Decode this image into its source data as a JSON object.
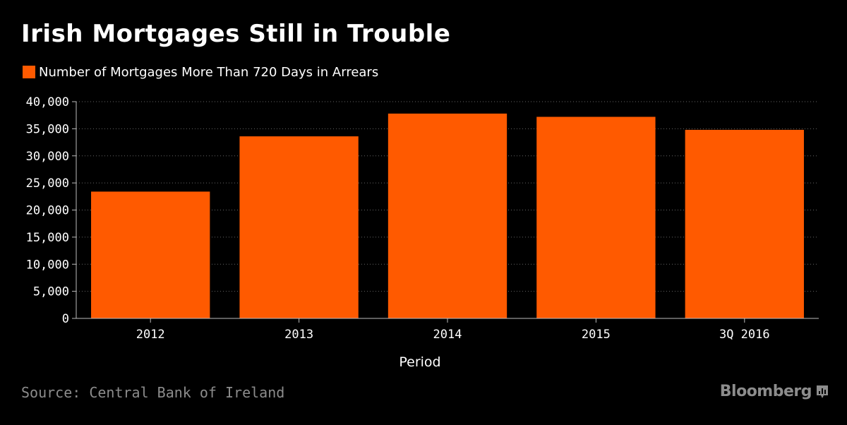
{
  "colors": {
    "background": "#000000",
    "bar": "#ff5a00",
    "text": "#ffffff",
    "grid": "#666666",
    "muted": "#8c8c8c"
  },
  "title": "Irish Mortgages Still in Trouble",
  "footer": {
    "source": "Source: Central Bank of Ireland",
    "brand": "Bloomberg"
  },
  "icons": {
    "brand_logo": "bloomberg-chart-icon"
  },
  "chart_data": {
    "type": "bar",
    "title": "Irish Mortgages Still in Trouble",
    "xlabel": "Period",
    "ylabel": "",
    "categories": [
      "2012",
      "2013",
      "2014",
      "2015",
      "3Q 2016"
    ],
    "series": [
      {
        "name": "Number of Mortgages More Than 720 Days in Arrears",
        "values": [
          23400,
          33600,
          37800,
          37200,
          34800
        ]
      }
    ],
    "ylim": [
      0,
      40000
    ],
    "yticks": [
      0,
      5000,
      10000,
      15000,
      20000,
      25000,
      30000,
      35000,
      40000
    ],
    "ytick_labels": [
      "0",
      "5,000",
      "10,000",
      "15,000",
      "20,000",
      "25,000",
      "30,000",
      "35,000",
      "40,000"
    ],
    "grid": true,
    "legend_position": "top-left"
  }
}
